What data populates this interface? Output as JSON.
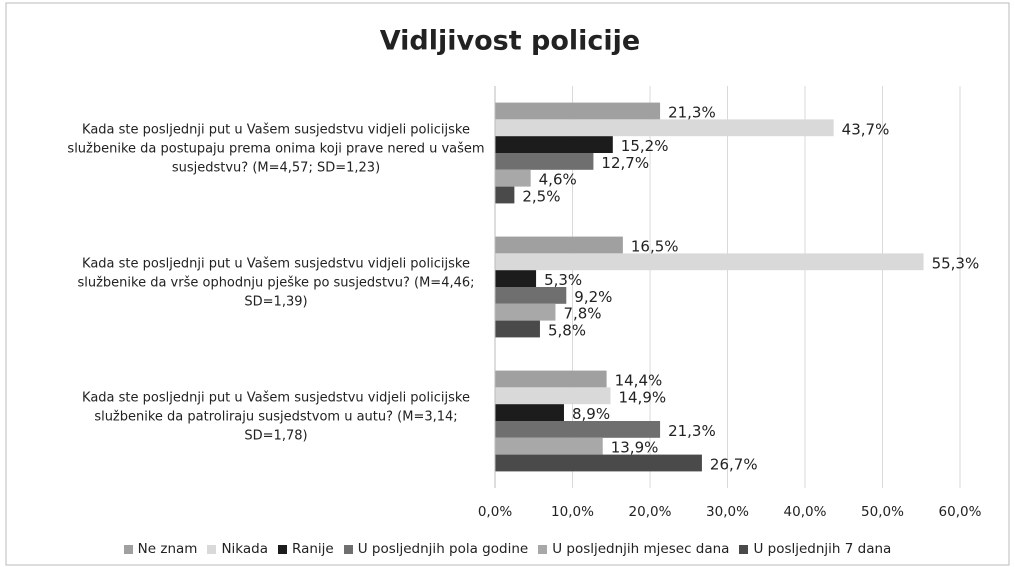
{
  "chart_data": {
    "type": "bar",
    "orientation": "horizontal",
    "title": "Vidljivost policije",
    "categories": [
      "Kada ste posljednji put u Vašem susjedstvu vidjeli policijske službenike da postupaju prema onima koji prave nered u vašem susjedstvu? (M=4,57; SD=1,23)",
      "Kada ste posljednji put u Vašem susjedstvu vidjeli policijske službenike da vrše ophodnju pješke po susjedstvu? (M=4,46; SD=1,39)",
      "Kada ste posljednji put u Vašem susjedstvu vidjeli policijske službenike da patroliraju susjedstvom u autu? (M=3,14; SD=1,78)"
    ],
    "series": [
      {
        "name": "Ne znam",
        "color": "#a0a0a0",
        "values": [
          21.3,
          16.5,
          14.4
        ],
        "value_labels": [
          "21,3%",
          "16,5%",
          "14,4%"
        ]
      },
      {
        "name": "Nikada",
        "color": "#d9d9d9",
        "values": [
          43.7,
          55.3,
          14.9
        ],
        "value_labels": [
          "43,7%",
          "55,3%",
          "14,9%"
        ]
      },
      {
        "name": "Ranije",
        "color": "#1c1c1c",
        "values": [
          15.2,
          5.3,
          8.9
        ],
        "value_labels": [
          "15,2%",
          "5,3%",
          "8,9%"
        ]
      },
      {
        "name": "U posljednjih pola godine",
        "color": "#6f6f6f",
        "values": [
          12.7,
          9.2,
          21.3
        ],
        "value_labels": [
          "12,7%",
          "9,2%",
          "21,3%"
        ]
      },
      {
        "name": "U posljednjih mjesec dana",
        "color": "#a8a8a8",
        "values": [
          4.6,
          7.8,
          13.9
        ],
        "value_labels": [
          "4,6%",
          "7,8%",
          "13,9%"
        ]
      },
      {
        "name": "U posljednjih 7 dana",
        "color": "#4a4a4a",
        "values": [
          2.5,
          5.8,
          26.7
        ],
        "value_labels": [
          "2,5%",
          "5,8%",
          "26,7%"
        ]
      }
    ],
    "xlim": [
      0,
      60
    ],
    "xticks": [
      {
        "value": 0,
        "label": "0,0%"
      },
      {
        "value": 10,
        "label": "10,0%"
      },
      {
        "value": 20,
        "label": "20,0%"
      },
      {
        "value": 30,
        "label": "30,0%"
      },
      {
        "value": 40,
        "label": "40,0%"
      },
      {
        "value": 50,
        "label": "50,0%"
      },
      {
        "value": 60,
        "label": "60,0%"
      }
    ],
    "grid": true,
    "legend": "bottom"
  }
}
